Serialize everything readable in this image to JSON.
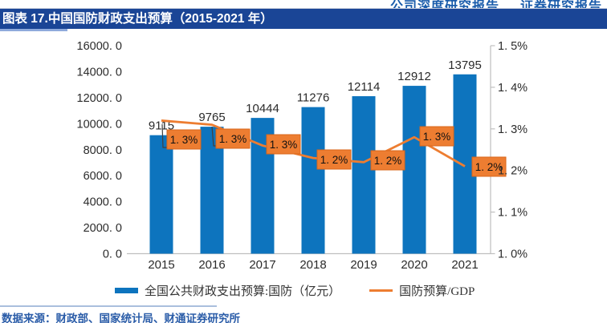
{
  "header": {
    "right_text_1": "公司深度研究报告",
    "right_text_2": "证券研究报告"
  },
  "title_bar": {
    "label": "图表 17.中国国防财政支出预算（2015-2021 年）"
  },
  "footer": {
    "source": "数据来源：财政部、国家统计局、财通证券研究所"
  },
  "colors": {
    "band_navy": "#1a4596",
    "header_text_blue": "#1a5cab",
    "bar_blue": "#0d74be",
    "line_orange": "#ed7d31",
    "label_box_border": "#d9661a",
    "axis_gray": "#bfbfbf",
    "tick_text": "#2b2b2b",
    "underline_blue": "#8faadc",
    "footer_text_blue": "#2a5ca8"
  },
  "chart_data": {
    "type": "bar",
    "title": "中国国防财政支出预算（2015-2021 年）",
    "categories": [
      "2015",
      "2016",
      "2017",
      "2018",
      "2019",
      "2020",
      "2021"
    ],
    "series": [
      {
        "name": "全国公共财政支出预算:国防（亿元）",
        "type": "bar",
        "axis": "left",
        "values": [
          9115,
          9765,
          10444,
          11276,
          12114,
          12912,
          13795
        ],
        "value_labels": [
          "9115",
          "9765",
          "10444",
          "11276",
          "12114",
          "12912",
          "13795"
        ]
      },
      {
        "name": "国防预算/GDP",
        "type": "line",
        "axis": "right",
        "values": [
          1.32,
          1.31,
          1.26,
          1.23,
          1.22,
          1.28,
          1.21
        ],
        "point_labels": [
          "1. 3%",
          "1. 3%",
          "1. 3%",
          "1. 2%",
          "1. 2%",
          "1. 3%",
          "1. 2%"
        ]
      }
    ],
    "left_axis": {
      "min": 0,
      "max": 16000,
      "step": 2000,
      "tick_labels": [
        "0. 0",
        "2000. 0",
        "4000. 0",
        "6000. 0",
        "8000. 0",
        "10000. 0",
        "12000. 0",
        "14000. 0",
        "16000. 0"
      ]
    },
    "right_axis": {
      "min": 1.0,
      "max": 1.5,
      "step": 0.1,
      "tick_labels": [
        "1. 0%",
        "1. 1%",
        "1. 2%",
        "1. 3%",
        "1. 4%",
        "1. 5%"
      ]
    },
    "grid": "off",
    "legend_position": "bottom",
    "legend": [
      {
        "swatch": "bar",
        "label": "全国公共财政支出预算:国防（亿元）"
      },
      {
        "swatch": "line",
        "label": "国防预算/GDP"
      }
    ]
  }
}
